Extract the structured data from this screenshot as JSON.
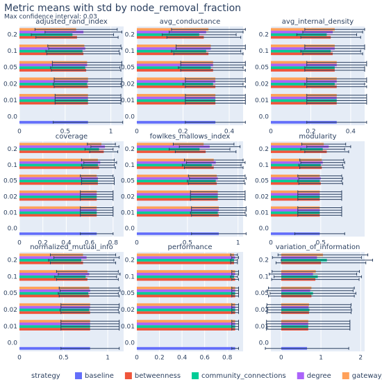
{
  "title": "Metric means with std by node_removal_fraction",
  "subtitle": "Max confidence interval: 0.03",
  "legend_title": "strategy",
  "chart_data": [
    {
      "type": "bar",
      "orientation": "h",
      "title": "adjusted_rand_index",
      "categories": [
        "0.0",
        "0.01",
        "0.02",
        "0.05",
        "0.1",
        "0.2"
      ],
      "xlim": [
        0,
        1.14
      ],
      "xticks": [
        0,
        0.5,
        1
      ],
      "series": [
        {
          "name": "baseline",
          "color": "#636efa",
          "values": [
            0.75,
            null,
            null,
            null,
            null,
            null
          ],
          "errors": [
            0.38,
            null,
            null,
            null,
            null,
            null
          ]
        },
        {
          "name": "betweenness",
          "color": "#ef553b",
          "values": [
            null,
            0.75,
            0.75,
            0.73,
            0.7,
            0.63
          ],
          "errors": [
            null,
            0.36,
            0.37,
            0.38,
            0.4,
            0.45
          ]
        },
        {
          "name": "community_connections",
          "color": "#00cc96",
          "values": [
            null,
            0.75,
            0.74,
            0.72,
            0.69,
            0.58
          ],
          "errors": [
            null,
            0.36,
            0.37,
            0.38,
            0.4,
            0.45
          ]
        },
        {
          "name": "degree",
          "color": "#ab63fa",
          "values": [
            null,
            0.75,
            0.75,
            0.74,
            0.72,
            0.7
          ],
          "errors": [
            null,
            0.36,
            0.37,
            0.38,
            0.4,
            0.42
          ]
        },
        {
          "name": "gateway_probability",
          "color": "#ffa15a",
          "values": [
            null,
            0.75,
            0.75,
            0.74,
            0.71,
            0.62
          ],
          "errors": [
            null,
            0.36,
            0.37,
            0.38,
            0.4,
            0.45
          ]
        }
      ]
    },
    {
      "type": "bar",
      "orientation": "h",
      "title": "avg_conductance",
      "categories": [
        "0.0",
        "0.01",
        "0.02",
        "0.05",
        "0.1",
        "0.2"
      ],
      "xlim": [
        0,
        0.46
      ],
      "xticks": [
        0,
        0.2,
        0.4
      ],
      "series": [
        {
          "name": "baseline",
          "color": "#636efa",
          "values": [
            0.34,
            null,
            null,
            null,
            null,
            null
          ],
          "errors": [
            0.13,
            null,
            null,
            null,
            null,
            null
          ]
        },
        {
          "name": "betweenness",
          "color": "#ef553b",
          "values": [
            null,
            0.34,
            0.34,
            0.33,
            0.31,
            0.29
          ],
          "errors": [
            null,
            0.13,
            0.13,
            0.14,
            0.15,
            0.16
          ]
        },
        {
          "name": "community_connections",
          "color": "#00cc96",
          "values": [
            null,
            0.34,
            0.33,
            0.32,
            0.3,
            0.27
          ],
          "errors": [
            null,
            0.13,
            0.13,
            0.14,
            0.15,
            0.16
          ]
        },
        {
          "name": "degree",
          "color": "#ab63fa",
          "values": [
            null,
            0.34,
            0.34,
            0.33,
            0.32,
            0.3
          ],
          "errors": [
            null,
            0.13,
            0.13,
            0.14,
            0.15,
            0.16
          ]
        },
        {
          "name": "gateway_probability",
          "color": "#ffa15a",
          "values": [
            null,
            0.34,
            0.34,
            0.33,
            0.32,
            0.31
          ],
          "errors": [
            null,
            0.13,
            0.13,
            0.14,
            0.15,
            0.16
          ]
        }
      ]
    },
    {
      "type": "bar",
      "orientation": "h",
      "title": "avg_internal_density",
      "categories": [
        "0.0",
        "0.01",
        "0.02",
        "0.05",
        "0.1",
        "0.2"
      ],
      "xlim": [
        0,
        0.47
      ],
      "xticks": [
        0,
        0.2,
        0.4
      ],
      "series": [
        {
          "name": "baseline",
          "color": "#636efa",
          "values": [
            0.33,
            null,
            null,
            null,
            null,
            null
          ],
          "errors": [
            0.15,
            null,
            null,
            null,
            null,
            null
          ]
        },
        {
          "name": "betweenness",
          "color": "#ef553b",
          "values": [
            null,
            0.33,
            0.33,
            0.32,
            0.31,
            0.3
          ],
          "errors": [
            null,
            0.15,
            0.15,
            0.15,
            0.15,
            0.15
          ]
        },
        {
          "name": "community_connections",
          "color": "#00cc96",
          "values": [
            null,
            0.33,
            0.32,
            0.32,
            0.3,
            0.28
          ],
          "errors": [
            null,
            0.15,
            0.15,
            0.15,
            0.15,
            0.15
          ]
        },
        {
          "name": "degree",
          "color": "#ab63fa",
          "values": [
            null,
            0.33,
            0.33,
            0.33,
            0.32,
            0.31
          ],
          "errors": [
            null,
            0.15,
            0.15,
            0.15,
            0.15,
            0.15
          ]
        },
        {
          "name": "gateway_probability",
          "color": "#ffa15a",
          "values": [
            null,
            0.33,
            0.33,
            0.33,
            0.32,
            0.32
          ],
          "errors": [
            null,
            0.15,
            0.15,
            0.15,
            0.15,
            0.15
          ]
        }
      ]
    },
    {
      "type": "bar",
      "orientation": "h",
      "title": "coverage",
      "categories": [
        "0.0",
        "0.01",
        "0.02",
        "0.05",
        "0.1",
        "0.2"
      ],
      "xlim": [
        0,
        0.89
      ],
      "xticks": [
        0,
        0.2,
        0.4,
        0.6,
        0.8
      ],
      "series": [
        {
          "name": "baseline",
          "color": "#636efa",
          "values": [
            0.66,
            null,
            null,
            null,
            null,
            null
          ],
          "errors": [
            0.14,
            null,
            null,
            null,
            null,
            null
          ]
        },
        {
          "name": "betweenness",
          "color": "#ef553b",
          "values": [
            null,
            0.66,
            0.66,
            0.67,
            0.68,
            0.72
          ],
          "errors": [
            null,
            0.14,
            0.14,
            0.14,
            0.14,
            0.12
          ]
        },
        {
          "name": "community_connections",
          "color": "#00cc96",
          "values": [
            null,
            0.66,
            0.66,
            0.67,
            0.67,
            0.68
          ],
          "errors": [
            null,
            0.14,
            0.14,
            0.14,
            0.14,
            0.12
          ]
        },
        {
          "name": "degree",
          "color": "#ab63fa",
          "values": [
            null,
            0.66,
            0.66,
            0.67,
            0.69,
            0.73
          ],
          "errors": [
            null,
            0.14,
            0.14,
            0.14,
            0.14,
            0.12
          ]
        },
        {
          "name": "gateway_probability",
          "color": "#ffa15a",
          "values": [
            null,
            0.66,
            0.66,
            0.66,
            0.67,
            0.7
          ],
          "errors": [
            null,
            0.14,
            0.14,
            0.14,
            0.14,
            0.12
          ]
        }
      ]
    },
    {
      "type": "bar",
      "orientation": "h",
      "title": "fowlkes_mallows_index",
      "categories": [
        "0.0",
        "0.01",
        "0.02",
        "0.05",
        "0.1",
        "0.2"
      ],
      "xlim": [
        0,
        1.05
      ],
      "xticks": [
        0,
        0.5,
        1
      ],
      "series": [
        {
          "name": "baseline",
          "color": "#636efa",
          "values": [
            0.81,
            null,
            null,
            null,
            null,
            null
          ],
          "errors": [
            0.27,
            null,
            null,
            null,
            null,
            null
          ]
        },
        {
          "name": "betweenness",
          "color": "#ef553b",
          "values": [
            null,
            0.81,
            0.8,
            0.79,
            0.76,
            0.68
          ],
          "errors": [
            null,
            0.27,
            0.27,
            0.28,
            0.29,
            0.3
          ]
        },
        {
          "name": "community_connections",
          "color": "#00cc96",
          "values": [
            null,
            0.8,
            0.8,
            0.78,
            0.74,
            0.62
          ],
          "errors": [
            null,
            0.27,
            0.27,
            0.28,
            0.29,
            0.3
          ]
        },
        {
          "name": "degree",
          "color": "#ab63fa",
          "values": [
            null,
            0.81,
            0.8,
            0.8,
            0.78,
            0.72
          ],
          "errors": [
            null,
            0.27,
            0.27,
            0.28,
            0.29,
            0.3
          ]
        },
        {
          "name": "gateway_probability",
          "color": "#ffa15a",
          "values": [
            null,
            0.81,
            0.8,
            0.79,
            0.76,
            0.66
          ],
          "errors": [
            null,
            0.27,
            0.27,
            0.28,
            0.29,
            0.3
          ]
        }
      ]
    },
    {
      "type": "bar",
      "orientation": "h",
      "title": "modularity",
      "categories": [
        "0.0",
        "0.01",
        "0.02",
        "0.05",
        "0.1",
        "0.2"
      ],
      "xlim": [
        0,
        0.94
      ],
      "xticks": [
        0,
        0.5
      ],
      "series": [
        {
          "name": "baseline",
          "color": "#636efa",
          "values": [
            0.49,
            null,
            null,
            null,
            null,
            null
          ],
          "errors": [
            0.25,
            null,
            null,
            null,
            null,
            null
          ]
        },
        {
          "name": "betweenness",
          "color": "#ef553b",
          "values": [
            null,
            0.49,
            0.49,
            0.5,
            0.51,
            0.56
          ],
          "errors": [
            null,
            0.22,
            0.22,
            0.22,
            0.22,
            0.22
          ]
        },
        {
          "name": "community_connections",
          "color": "#00cc96",
          "values": [
            null,
            0.49,
            0.49,
            0.49,
            0.5,
            0.52
          ],
          "errors": [
            null,
            0.22,
            0.22,
            0.22,
            0.22,
            0.22
          ]
        },
        {
          "name": "degree",
          "color": "#ab63fa",
          "values": [
            null,
            0.49,
            0.49,
            0.5,
            0.52,
            0.58
          ],
          "errors": [
            null,
            0.22,
            0.22,
            0.22,
            0.22,
            0.22
          ]
        },
        {
          "name": "gateway_probability",
          "color": "#ffa15a",
          "values": [
            null,
            0.49,
            0.49,
            0.49,
            0.51,
            0.53
          ],
          "errors": [
            null,
            0.22,
            0.22,
            0.22,
            0.22,
            0.22
          ]
        }
      ]
    },
    {
      "type": "bar",
      "orientation": "h",
      "title": "normalized_mutual_info",
      "categories": [
        "0.0",
        "0.01",
        "0.02",
        "0.05",
        "0.1",
        "0.2"
      ],
      "xlim": [
        0,
        1.18
      ],
      "xticks": [
        0,
        0.5,
        1
      ],
      "series": [
        {
          "name": "baseline",
          "color": "#636efa",
          "values": [
            0.8,
            null,
            null,
            null,
            null,
            null
          ],
          "errors": [
            0.33,
            null,
            null,
            null,
            null,
            null
          ]
        },
        {
          "name": "betweenness",
          "color": "#ef553b",
          "values": [
            null,
            0.8,
            0.8,
            0.79,
            0.77,
            0.72
          ],
          "errors": [
            null,
            0.33,
            0.33,
            0.34,
            0.35,
            0.37
          ]
        },
        {
          "name": "community_connections",
          "color": "#00cc96",
          "values": [
            null,
            0.8,
            0.79,
            0.78,
            0.75,
            0.7
          ],
          "errors": [
            null,
            0.33,
            0.33,
            0.34,
            0.35,
            0.37
          ]
        },
        {
          "name": "degree",
          "color": "#ab63fa",
          "values": [
            null,
            0.8,
            0.8,
            0.8,
            0.79,
            0.76
          ],
          "errors": [
            null,
            0.33,
            0.33,
            0.34,
            0.35,
            0.37
          ]
        },
        {
          "name": "gateway_probability",
          "color": "#ffa15a",
          "values": [
            null,
            0.8,
            0.8,
            0.79,
            0.77,
            0.72
          ],
          "errors": [
            null,
            0.33,
            0.33,
            0.34,
            0.35,
            0.37
          ]
        }
      ]
    },
    {
      "type": "bar",
      "orientation": "h",
      "title": "performance",
      "categories": [
        "0.0",
        "0.01",
        "0.02",
        "0.05",
        "0.1",
        "0.2"
      ],
      "xlim": [
        0,
        0.94
      ],
      "xticks": [
        0,
        0.2,
        0.4,
        0.6,
        0.8
      ],
      "series": [
        {
          "name": "baseline",
          "color": "#636efa",
          "values": [
            0.87,
            null,
            null,
            null,
            null,
            null
          ],
          "errors": [
            0.03,
            null,
            null,
            null,
            null,
            null
          ]
        },
        {
          "name": "betweenness",
          "color": "#ef553b",
          "values": [
            null,
            0.87,
            0.87,
            0.87,
            0.87,
            0.86
          ],
          "errors": [
            null,
            0.03,
            0.03,
            0.03,
            0.03,
            0.03
          ]
        },
        {
          "name": "community_connections",
          "color": "#00cc96",
          "values": [
            null,
            0.87,
            0.87,
            0.87,
            0.86,
            0.86
          ],
          "errors": [
            null,
            0.03,
            0.03,
            0.03,
            0.03,
            0.03
          ]
        },
        {
          "name": "degree",
          "color": "#ab63fa",
          "values": [
            null,
            0.87,
            0.87,
            0.87,
            0.87,
            0.87
          ],
          "errors": [
            null,
            0.03,
            0.03,
            0.03,
            0.03,
            0.03
          ]
        },
        {
          "name": "gateway_probability",
          "color": "#ffa15a",
          "values": [
            null,
            0.87,
            0.87,
            0.87,
            0.87,
            0.86
          ],
          "errors": [
            null,
            0.03,
            0.03,
            0.03,
            0.03,
            0.03
          ]
        }
      ]
    },
    {
      "type": "bar",
      "orientation": "h",
      "title": "variation_of_information",
      "categories": [
        "0.0",
        "0.01",
        "0.02",
        "0.05",
        "0.1",
        "0.2"
      ],
      "xlim": [
        -0.26,
        2.1
      ],
      "xticks": [
        0,
        1,
        2
      ],
      "series": [
        {
          "name": "baseline",
          "color": "#636efa",
          "values": [
            0.65,
            null,
            null,
            null,
            null,
            null
          ],
          "errors": [
            1.05,
            null,
            null,
            null,
            null,
            null
          ]
        },
        {
          "name": "betweenness",
          "color": "#ef553b",
          "values": [
            null,
            0.68,
            0.7,
            0.76,
            0.86,
            1
          ],
          "errors": [
            null,
            1.05,
            1.06,
            1.08,
            1.1,
            1.13
          ]
        },
        {
          "name": "community_connections",
          "color": "#00cc96",
          "values": [
            null,
            0.68,
            0.71,
            0.8,
            0.92,
            1.15
          ],
          "errors": [
            null,
            1.05,
            1.06,
            1.08,
            1.1,
            1.15
          ]
        },
        {
          "name": "degree",
          "color": "#ab63fa",
          "values": [
            null,
            0.68,
            0.69,
            0.73,
            0.8,
            0.9
          ],
          "errors": [
            null,
            1.05,
            1.06,
            1.08,
            1.1,
            1.12
          ]
        },
        {
          "name": "gateway_probability",
          "color": "#ffa15a",
          "values": [
            null,
            0.68,
            0.7,
            0.76,
            0.87,
            1.05
          ],
          "errors": [
            null,
            1.05,
            1.06,
            1.08,
            1.1,
            1.13
          ]
        }
      ]
    }
  ]
}
